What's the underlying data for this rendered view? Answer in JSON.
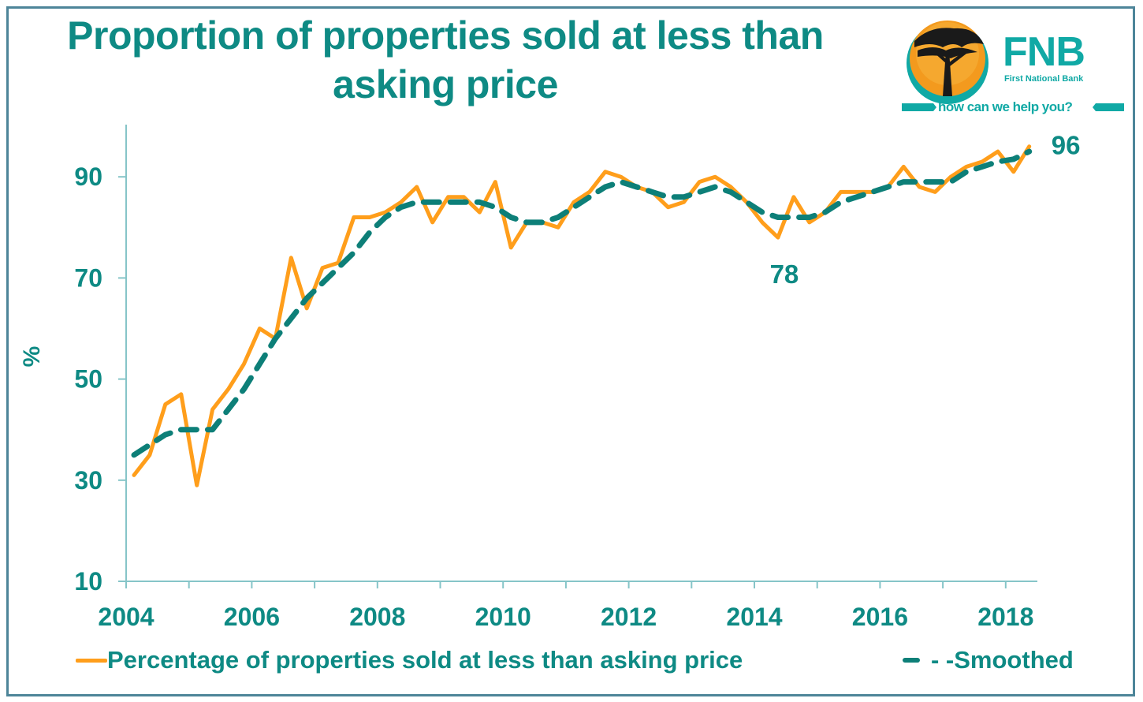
{
  "title": "Proportion of properties sold at less than asking price",
  "logo": {
    "brand": "FNB",
    "subtitle": "First National Bank",
    "tagline": "how can we help you?",
    "icon": "acacia-tree-sun-icon",
    "colors": {
      "teal": "#10a9a5",
      "orange": "#f39a1e",
      "dark": "#1a1a1a"
    }
  },
  "chart_data": {
    "type": "line",
    "title": "Proportion of properties sold at less than asking price",
    "xlabel": "",
    "ylabel": "%",
    "x_start": "2004Q1",
    "frequency": "quarterly",
    "x_tick_labels": [
      "2004",
      "2006",
      "2008",
      "2010",
      "2012",
      "2014",
      "2016",
      "2018"
    ],
    "y_ticks": [
      10,
      30,
      50,
      70,
      90
    ],
    "ylim": [
      10,
      100
    ],
    "xlim": [
      2004.0,
      2018.5
    ],
    "grid": false,
    "legend_position": "bottom",
    "series": [
      {
        "name": "Percentage of properties sold at less than asking price",
        "color": "#ff9e1b",
        "style": "solid",
        "values": [
          31,
          35,
          45,
          47,
          29,
          44,
          48,
          53,
          60,
          58,
          74,
          64,
          72,
          73,
          82,
          82,
          83,
          85,
          88,
          81,
          86,
          86,
          83,
          89,
          76,
          81,
          81,
          80,
          85,
          87,
          91,
          90,
          88,
          87,
          84,
          85,
          89,
          90,
          88,
          85,
          81,
          78,
          86,
          81,
          83,
          87,
          87,
          87,
          88,
          92,
          88,
          87,
          90,
          92,
          93,
          95,
          91,
          96
        ]
      },
      {
        "name": "Smoothed",
        "legend_label": "- -Smoothed",
        "color": "#0d7f78",
        "style": "dashed",
        "values": [
          35,
          37,
          39,
          40,
          40,
          40,
          44,
          48,
          53,
          58,
          62,
          66,
          69,
          72,
          75,
          79,
          82,
          84,
          85,
          85,
          85,
          85,
          85,
          84,
          82,
          81,
          81,
          82,
          84,
          86,
          88,
          89,
          88,
          87,
          86,
          86,
          87,
          88,
          87,
          85,
          83,
          82,
          82,
          82,
          83,
          85,
          86,
          87,
          88,
          89,
          89,
          89,
          89,
          91,
          92,
          93,
          93.5,
          95
        ]
      }
    ],
    "annotations": [
      {
        "text": "78",
        "x": "2014Q2",
        "y": 78
      },
      {
        "text": "96",
        "x": "2018Q2",
        "y": 96
      }
    ]
  }
}
